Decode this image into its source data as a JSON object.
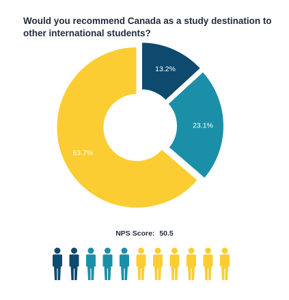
{
  "title": "Would you recommend Canada as a study destination to other international students?",
  "chart_data": {
    "type": "pie",
    "variant": "donut",
    "slices": [
      {
        "label": "13.2%",
        "value": 13.2,
        "color": "#0d4a6e"
      },
      {
        "label": "23.1%",
        "value": 23.1,
        "color": "#1b8fa8"
      },
      {
        "label": "63.7%",
        "value": 63.7,
        "color": "#fbcd33"
      }
    ]
  },
  "nps": {
    "label": "NPS Score:",
    "value": "50.5"
  },
  "people": {
    "total": 11,
    "colors": [
      "#0d4a6e",
      "#0d4a6e",
      "#1b8fa8",
      "#1b8fa8",
      "#1b8fa8",
      "#fbcd33",
      "#fbcd33",
      "#fbcd33",
      "#fbcd33",
      "#fbcd33",
      "#fbcd33"
    ],
    "icon": "person-icon"
  }
}
